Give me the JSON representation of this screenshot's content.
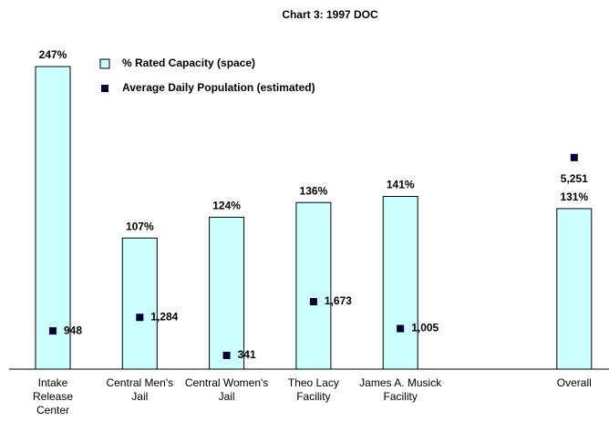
{
  "chart_data": {
    "type": "bar",
    "title": "Chart 3: 1997 DOC",
    "categories": [
      "Intake Release Center",
      "Central Men's Jail",
      "Central Women's Jail",
      "Theo Lacy Facility",
      "James A. Musick Facility",
      null,
      "Overall"
    ],
    "series": [
      {
        "name": "% Rated Capacity (space)",
        "color": "#ccffff",
        "values": [
          247,
          107,
          124,
          136,
          141,
          null,
          131
        ],
        "value_labels": [
          "247%",
          "107%",
          "124%",
          "136%",
          "141%",
          null,
          "131%"
        ]
      },
      {
        "name": "Average Daily Population (estimated)",
        "color": "#000033",
        "axis": "y2",
        "values": [
          948,
          1284,
          341,
          1673,
          1005,
          null,
          5251
        ],
        "value_labels": [
          "948",
          "1,284",
          "341",
          "1,673",
          "1,005",
          null,
          "5,251"
        ]
      }
    ],
    "ylim": [
      0,
      250
    ],
    "y2lim": [
      0,
      7600
    ],
    "legend": "top-left"
  }
}
